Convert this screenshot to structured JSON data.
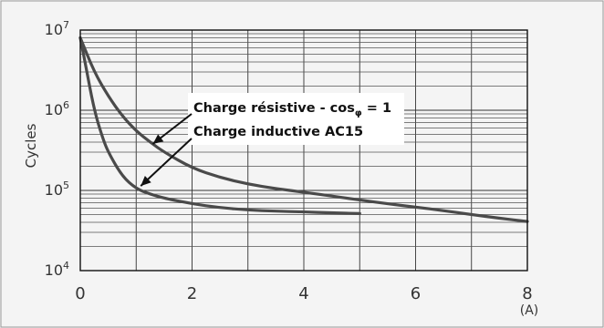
{
  "chart_data": {
    "type": "line",
    "title": "",
    "ylabel": "Cycles",
    "xlabel": "(A)",
    "y_scale": "log",
    "xlim": [
      0,
      8
    ],
    "ylim": [
      10000,
      10000000
    ],
    "grid": true,
    "x_ticks": [
      {
        "value": 0,
        "label": "0"
      },
      {
        "value": 2,
        "label": "2"
      },
      {
        "value": 4,
        "label": "4"
      },
      {
        "value": 6,
        "label": "6"
      },
      {
        "value": 8,
        "label": "8"
      }
    ],
    "y_ticks": [
      {
        "value": 10000,
        "base": "10",
        "exp": "4"
      },
      {
        "value": 100000,
        "base": "10",
        "exp": "5"
      },
      {
        "value": 1000000,
        "base": "10",
        "exp": "6"
      },
      {
        "value": 10000000,
        "base": "10",
        "exp": "7"
      }
    ],
    "series": [
      {
        "name": "Charge résistive - cos φ = 1",
        "x": [
          0,
          0.25,
          0.5,
          0.75,
          1,
          1.25,
          1.5,
          2,
          2.5,
          3,
          3.5,
          4,
          4.5,
          5,
          5.5,
          6,
          6.5,
          7,
          7.5,
          8
        ],
        "y": [
          8000000,
          3000000,
          1500000,
          850000,
          550000,
          400000,
          300000,
          190000,
          145000,
          120000,
          105000,
          95000,
          85000,
          76000,
          68000,
          62000,
          56000,
          50000,
          45000,
          41000
        ]
      },
      {
        "name": "Charge inductive AC15",
        "x": [
          0,
          0.1,
          0.25,
          0.4,
          0.5,
          0.75,
          1,
          1.25,
          1.5,
          2,
          2.5,
          3,
          3.5,
          4,
          4.5,
          5
        ],
        "y": [
          8000000,
          3500000,
          1000000,
          450000,
          300000,
          150000,
          105000,
          90000,
          80000,
          68000,
          61000,
          57000,
          55000,
          54000,
          52500,
          51500
        ]
      }
    ],
    "annotations": [
      {
        "id": "res",
        "text_main": "Charge résistive - cos",
        "text_sub": "φ",
        "text_tail": " = 1",
        "arrow_to": {
          "x": 1.25,
          "y": 400000
        }
      },
      {
        "id": "ind",
        "text_main": "Charge inductive AC15",
        "arrow_to": {
          "x": 1.0,
          "y": 105000
        }
      }
    ],
    "colors": {
      "curve": "#4a4a4a",
      "grid_major": "#333333",
      "grid_minor": "#555555",
      "axis": "#111111",
      "background": "#f4f4f4",
      "annotation_box": "#ffffff"
    }
  }
}
